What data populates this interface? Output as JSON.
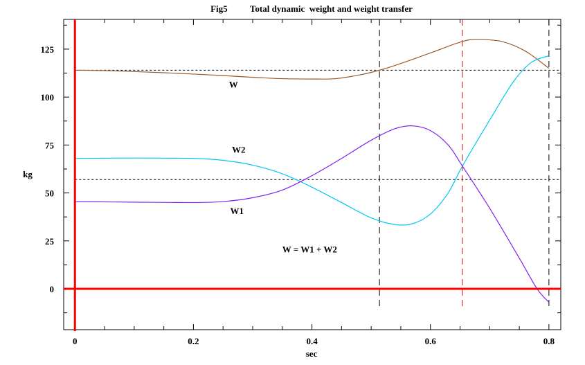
{
  "chart_data": {
    "type": "line",
    "title": "Fig5          Total dynamic  weight and weight transfer",
    "xlabel": "sec",
    "ylabel": "kg",
    "xlim": [
      -0.019,
      0.82
    ],
    "ylim": [
      -21.3,
      140.5
    ],
    "x_ticks": [
      0,
      0.2,
      0.4,
      0.6,
      0.8
    ],
    "x_tick_labels": [
      "0",
      "0.2",
      "0.4",
      "0.6",
      "0.8"
    ],
    "y_ticks": [
      0,
      25,
      50,
      75,
      100,
      125
    ],
    "y_tick_labels": [
      "0",
      "25",
      "50",
      "75",
      "100",
      "125"
    ],
    "grid": false,
    "axis_color": "#ff0000",
    "reference_lines": {
      "horizontal": [
        114,
        57
      ],
      "vertical": [
        {
          "x": 0.514,
          "color": "#000000"
        },
        {
          "x": 0.654,
          "color": "#e00000"
        },
        {
          "x": 0.8,
          "color": "#000000"
        }
      ]
    },
    "series": [
      {
        "name": "W",
        "color": "#9a5a28",
        "x": [
          0,
          0.05,
          0.1,
          0.15,
          0.2,
          0.25,
          0.3,
          0.35,
          0.4,
          0.44,
          0.48,
          0.514,
          0.55,
          0.6,
          0.654,
          0.68,
          0.72,
          0.76,
          0.8
        ],
        "y": [
          114,
          113.8,
          113.3,
          112.7,
          112,
          111.2,
          110.3,
          109.6,
          109.4,
          109.6,
          111.5,
          114,
          117.5,
          123,
          129,
          130,
          129,
          124,
          115
        ]
      },
      {
        "name": "W2",
        "color": "#00c8f0",
        "x": [
          0,
          0.1,
          0.2,
          0.25,
          0.3,
          0.35,
          0.4,
          0.45,
          0.5,
          0.54,
          0.57,
          0.6,
          0.63,
          0.654,
          0.7,
          0.74,
          0.77,
          0.8
        ],
        "y": [
          68,
          68.2,
          68,
          67,
          64.5,
          60,
          53,
          45,
          37,
          33.5,
          34,
          39,
          50,
          64,
          88,
          108,
          118,
          121.5
        ]
      },
      {
        "name": "W1",
        "color": "#8020f0",
        "x": [
          0,
          0.1,
          0.2,
          0.25,
          0.3,
          0.35,
          0.4,
          0.45,
          0.5,
          0.54,
          0.57,
          0.6,
          0.63,
          0.654,
          0.7,
          0.75,
          0.78,
          0.8
        ],
        "y": [
          45.5,
          45.2,
          45,
          45.5,
          47.5,
          51.5,
          59,
          68,
          77.5,
          83.5,
          85,
          82.5,
          75,
          64,
          42,
          16,
          0,
          -7
        ]
      }
    ],
    "annotations": [
      {
        "text": "W",
        "x": 0.26,
        "y": 105
      },
      {
        "text": "W2",
        "x": 0.265,
        "y": 71
      },
      {
        "text": "W1",
        "x": 0.262,
        "y": 39
      },
      {
        "text": "W = W1 + W2",
        "x": 0.35,
        "y": 19
      }
    ]
  }
}
